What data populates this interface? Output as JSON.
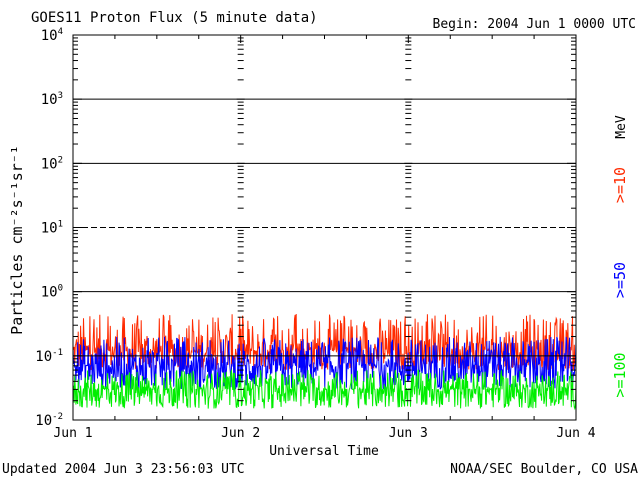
{
  "header": {
    "title": "GOES11 Proton Flux (5 minute data)",
    "begin": "Begin: 2004 Jun 1 0000 UTC"
  },
  "footer": {
    "updated": "Updated 2004 Jun  3 23:56:03 UTC",
    "credit": "NOAA/SEC Boulder, CO USA"
  },
  "chart_data": {
    "type": "line",
    "title": "GOES11 Proton Flux (5 minute data)",
    "xlabel": "Universal Time",
    "ylabel": "Particles cm⁻²s⁻¹sr⁻¹",
    "yscale": "log",
    "ylim": [
      0.01,
      10000
    ],
    "xlim": [
      0,
      3
    ],
    "x_unit": "days since 2004 Jun 1 0000 UTC",
    "x_tick_labels": [
      "Jun 1",
      "Jun 2",
      "Jun 3",
      "Jun 4"
    ],
    "y_tick_labels": [
      {
        "base": "10",
        "exp": "-2"
      },
      {
        "base": "10",
        "exp": "-1"
      },
      {
        "base": "10",
        "exp": "0"
      },
      {
        "base": "10",
        "exp": "1"
      },
      {
        "base": "10",
        "exp": "2"
      },
      {
        "base": "10",
        "exp": "3"
      },
      {
        "base": "10",
        "exp": "4"
      }
    ],
    "right_label_unit": "MeV",
    "grid": "solid lines at 10^0, 10^2, 10^3; dashed at 10^1; solid reference at 10^-1",
    "series": [
      {
        "name": ">=10",
        "color": "#ff2a00",
        "range": [
          0.06,
          0.45
        ],
        "typical": 0.12
      },
      {
        "name": ">=50",
        "color": "#0000ff",
        "range": [
          0.03,
          0.2
        ],
        "typical": 0.07
      },
      {
        "name": ">=100",
        "color": "#00ee00",
        "range": [
          0.015,
          0.06
        ],
        "typical": 0.03
      }
    ]
  }
}
